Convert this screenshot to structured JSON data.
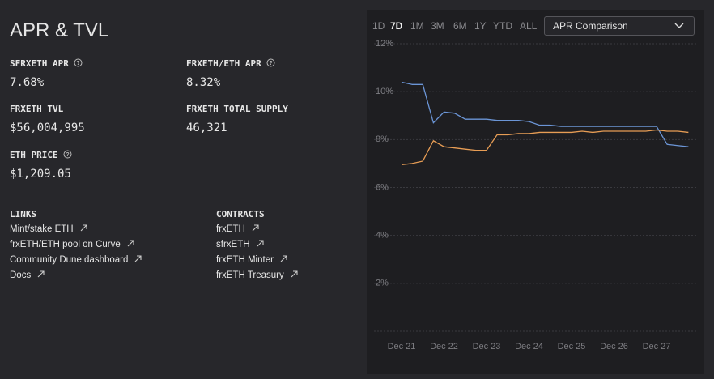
{
  "header": {
    "title": "APR & TVL"
  },
  "stats": [
    {
      "label": "SFRXETH APR",
      "value": "7.68%"
    },
    {
      "label": "FRXETH/ETH APR",
      "value": "8.32%"
    },
    {
      "label": "FRXETH TVL",
      "value": "$56,004,995"
    },
    {
      "label": "FRXETH TOTAL SUPPLY",
      "value": "46,321"
    },
    {
      "label": "ETH PRICE",
      "value": "$1,209.05"
    }
  ],
  "links": {
    "title": "LINKS",
    "items": [
      "Mint/stake ETH",
      "frxETH/ETH pool on Curve",
      "Community Dune dashboard",
      "Docs"
    ]
  },
  "contracts": {
    "title": "CONTRACTS",
    "items": [
      "frxETH",
      "sfrxETH",
      "frxETH Minter",
      "frxETH Treasury"
    ]
  },
  "ranges": [
    "1D",
    "7D",
    "1M",
    "3M",
    "6M",
    "1Y",
    "YTD",
    "ALL"
  ],
  "active_range": "7D",
  "select": "APR Comparison",
  "chart_data": {
    "type": "line",
    "categories": [
      "Dec 21",
      null,
      null,
      null,
      "Dec 22",
      null,
      null,
      null,
      "Dec 23",
      null,
      null,
      null,
      "Dec 24",
      null,
      null,
      null,
      "Dec 25",
      null,
      null,
      null,
      "Dec 26",
      null,
      null,
      null,
      "Dec 27",
      null,
      null,
      null
    ],
    "series": [
      {
        "color": "#6b95d6",
        "values": [
          10.4,
          10.3,
          10.3,
          8.7,
          9.15,
          9.1,
          8.85,
          8.85,
          8.85,
          8.8,
          8.8,
          8.8,
          8.75,
          8.6,
          8.6,
          8.55,
          8.55,
          8.55,
          8.55,
          8.55,
          8.55,
          8.55,
          8.55,
          8.55,
          8.55,
          7.8,
          7.75,
          7.7
        ]
      },
      {
        "color": "#e79d55",
        "values": [
          6.95,
          7.0,
          7.1,
          7.95,
          7.7,
          7.65,
          7.6,
          7.55,
          7.55,
          8.2,
          8.2,
          8.25,
          8.25,
          8.3,
          8.3,
          8.3,
          8.3,
          8.35,
          8.3,
          8.35,
          8.35,
          8.35,
          8.35,
          8.35,
          8.4,
          8.35,
          8.35,
          8.3
        ]
      }
    ],
    "ylim": [
      0,
      12
    ],
    "yticks": [
      0,
      {
        "value": 2,
        "label": "2%"
      },
      {
        "value": 4,
        "label": "4%"
      },
      {
        "value": 6,
        "label": "6%"
      },
      {
        "value": 8,
        "label": "8%"
      },
      {
        "value": 10,
        "label": "10%"
      },
      {
        "value": 12,
        "label": "12%"
      }
    ],
    "grid": true
  }
}
